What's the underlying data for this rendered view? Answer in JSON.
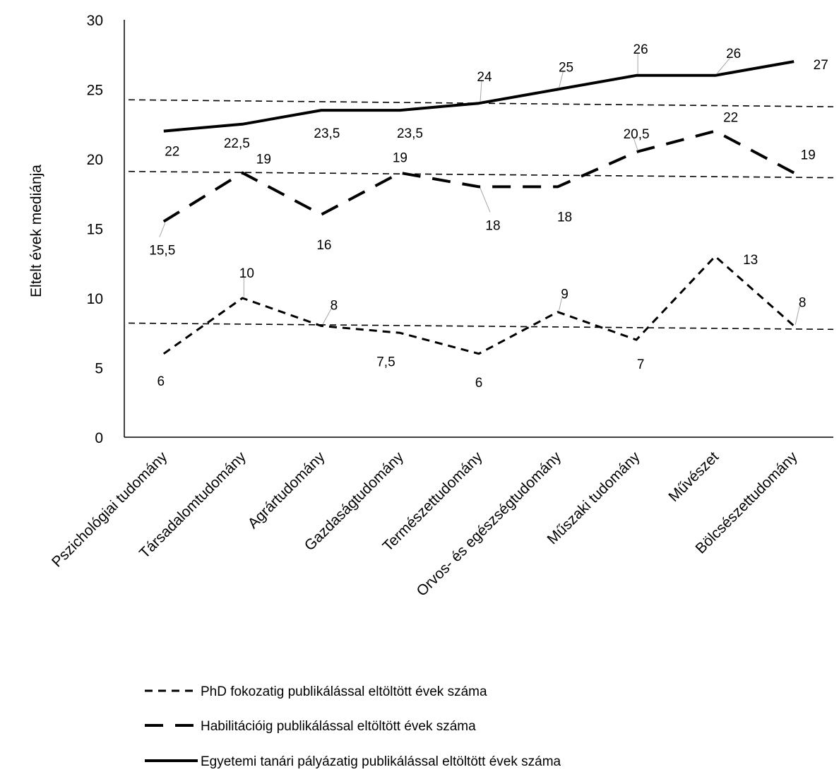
{
  "chart_data": {
    "type": "line",
    "title": "",
    "ylabel": "Eltelt évek mediánja",
    "xlabel": "",
    "ylim": [
      0,
      30
    ],
    "yticks": [
      0,
      5,
      10,
      15,
      20,
      25,
      30
    ],
    "grid": false,
    "legend_position": "bottom",
    "categories": [
      "Pszichológiai tudomány",
      "Társadalomtudomány",
      "Agrártudomány",
      "Gazdaságtudomány",
      "Természettudomány",
      "Orvos- és egészségtudomány",
      "Műszaki tudomány",
      "Művészet",
      "Bölcsészettudomány"
    ],
    "series": [
      {
        "name": "PhD fokozatig publikálással eltöltött évek száma",
        "style": "dashed-short",
        "values": [
          6,
          10,
          8,
          7.5,
          6,
          9,
          7,
          13,
          8
        ],
        "labels": [
          "6",
          "10",
          "8",
          "7,5",
          "6",
          "9",
          "7",
          "13",
          "8"
        ],
        "trend": [
          8.2,
          7.75
        ]
      },
      {
        "name": "Habilitációig publikálással eltöltött évek száma",
        "style": "dashed-long",
        "values": [
          15.5,
          19,
          16,
          19,
          18,
          18,
          20.5,
          22,
          19
        ],
        "labels": [
          "15,5",
          "19",
          "16",
          "19",
          "18",
          "18",
          "20,5",
          "22",
          "19"
        ],
        "trend": [
          19.1,
          18.65
        ]
      },
      {
        "name": "Egyetemi tanári pályázatig publikálással eltöltött évek száma",
        "style": "solid",
        "values": [
          22,
          22.5,
          23.5,
          23.5,
          24,
          25,
          26,
          26,
          27
        ],
        "labels": [
          "22",
          "22,5",
          "23,5",
          "23,5",
          "24",
          "25",
          "26",
          "26",
          "27"
        ],
        "trend": [
          24.25,
          23.75
        ]
      }
    ],
    "colors": {
      "line": "#000000",
      "axis": "#000000",
      "leader": "#a6a6a6"
    }
  }
}
